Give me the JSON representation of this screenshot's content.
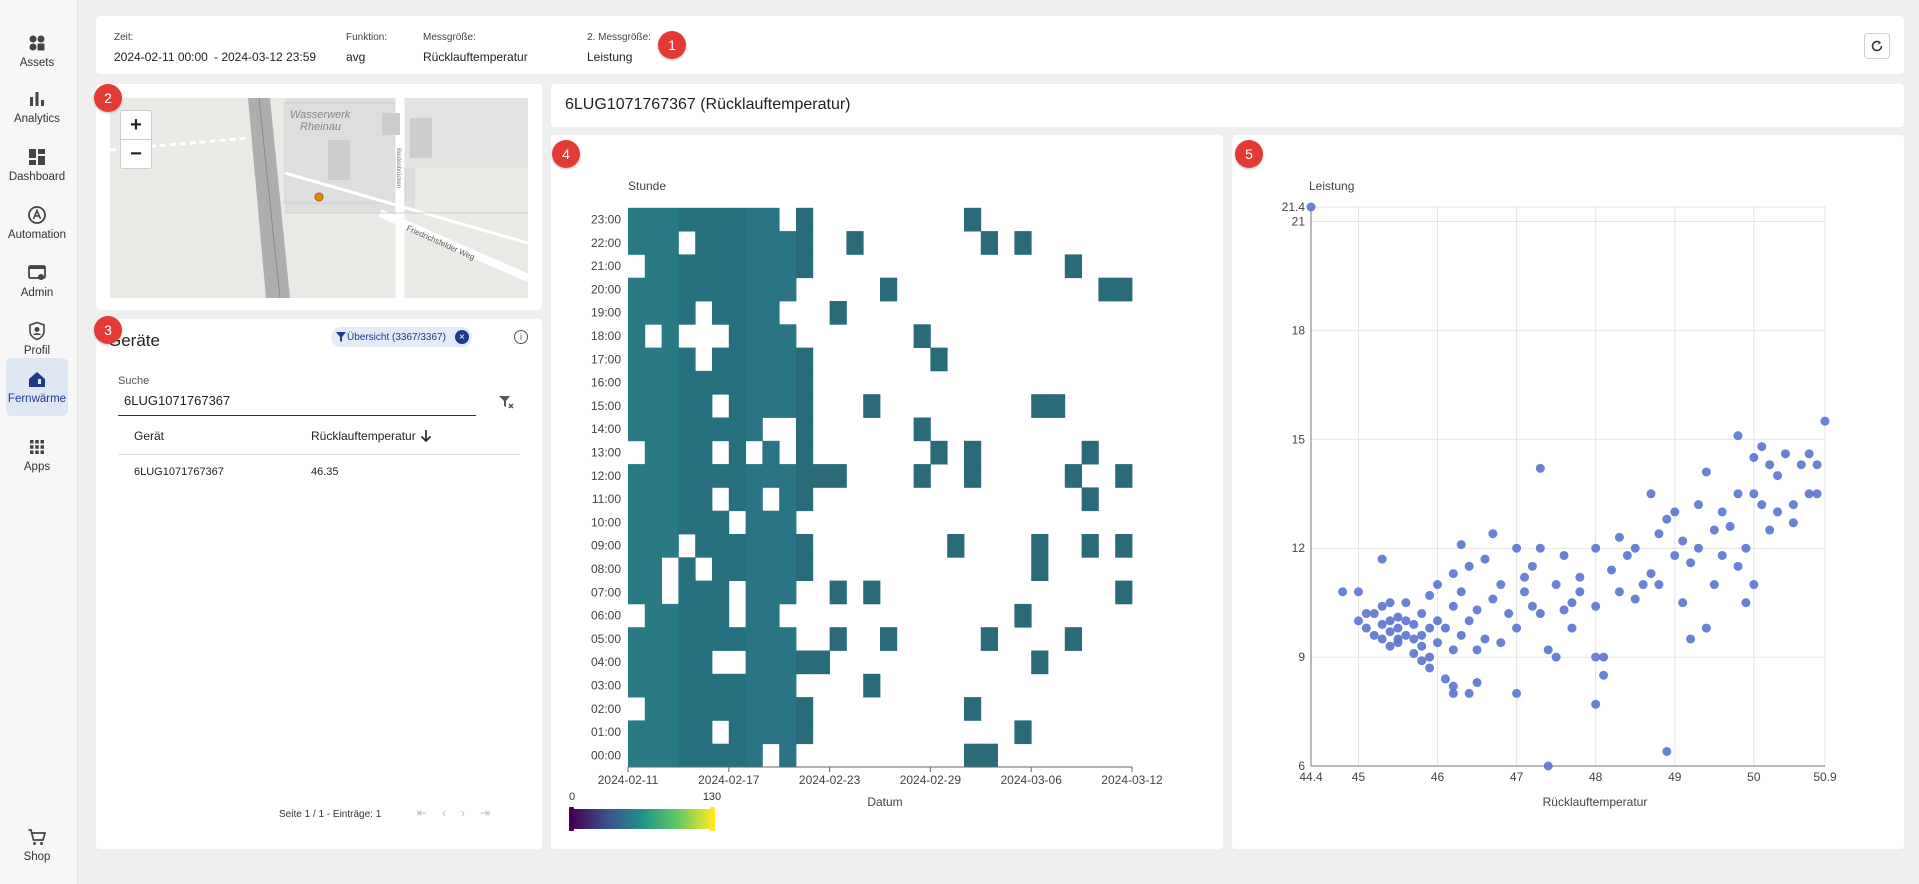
{
  "sidebar": {
    "items": [
      {
        "label": "Assets",
        "icon": "assets-icon"
      },
      {
        "label": "Analytics",
        "icon": "analytics-icon"
      },
      {
        "label": "Dashboard",
        "icon": "dashboard-icon"
      },
      {
        "label": "Automation",
        "icon": "automation-icon"
      },
      {
        "label": "Admin",
        "icon": "admin-icon"
      },
      {
        "label": "Profil",
        "icon": "profile-icon"
      },
      {
        "label": "Fernwärme",
        "icon": "district-heating-icon"
      },
      {
        "label": "Apps",
        "icon": "apps-icon"
      }
    ],
    "shop": {
      "label": "Shop",
      "icon": "cart-icon"
    }
  },
  "filters": {
    "zeit_label": "Zeit:",
    "zeit_from": "2024-02-11 00:00",
    "zeit_to": "- 2024-03-12 23:59",
    "funktion_label": "Funktion:",
    "funktion_value": "avg",
    "messgroesse_label": "Messgröße:",
    "messgroesse_value": "Rücklauftemperatur",
    "messgroesse2_label": "2. Messgröße:",
    "messgroesse2_value": "Leistung"
  },
  "badges": [
    "1",
    "2",
    "3",
    "4",
    "5"
  ],
  "map": {
    "label_1": "Wasserwerk",
    "label_2": "Rheinau",
    "street_1": "Friedrichsfelder Weg",
    "street_2": "Beidenbrücken",
    "zoom_in": "+",
    "zoom_out": "−"
  },
  "devices": {
    "title": "Geräte",
    "chip_label": "Übersicht (3367/3367)",
    "search_label": "Suche",
    "search_value": "6LUG1071767367",
    "columns": [
      "Gerät",
      "Rücklauftemperatur"
    ],
    "rows": [
      {
        "device": "6LUG1071767367",
        "value": "46.35"
      }
    ],
    "pagination": "Seite 1 / 1 - Einträge: 1"
  },
  "chart_title": "6LUG1071767367 (Rücklauftemperatur)",
  "chart_data": [
    {
      "type": "heatmap",
      "title": "",
      "ylabel": "Stunde",
      "xlabel": "Datum",
      "y_ticks": [
        "00:00",
        "01:00",
        "02:00",
        "03:00",
        "04:00",
        "05:00",
        "06:00",
        "07:00",
        "08:00",
        "09:00",
        "10:00",
        "11:00",
        "12:00",
        "13:00",
        "14:00",
        "15:00",
        "16:00",
        "17:00",
        "18:00",
        "19:00",
        "20:00",
        "21:00",
        "22:00",
        "23:00"
      ],
      "x_ticks": [
        "2024-02-11",
        "2024-02-17",
        "2024-02-23",
        "2024-02-29",
        "2024-03-06",
        "2024-03-12"
      ],
      "x_range": [
        "2024-02-11",
        "2024-03-12"
      ],
      "colorscale": {
        "min": 0,
        "max": 130,
        "min_label": "0",
        "max_label": "130"
      },
      "note": "Filled cells ~ values 50-65 (teal); 2024-02-11..02-20 mostly filled; sparse cells afterwards"
    },
    {
      "type": "scatter",
      "xlabel": "Rücklauftemperatur",
      "ylabel": "Leistung",
      "xlim": [
        44.4,
        50.9
      ],
      "ylim": [
        6,
        21.4
      ],
      "x_ticks": [
        "44.4",
        "45",
        "46",
        "47",
        "48",
        "49",
        "50",
        "50.9"
      ],
      "y_ticks": [
        "6",
        "9",
        "12",
        "15",
        "18",
        "21",
        "21.4"
      ],
      "series": [
        {
          "name": "Leistung",
          "color": "#5b73cf",
          "points": [
            [
              44.4,
              21.4
            ],
            [
              44.8,
              10.8
            ],
            [
              45.0,
              10.0
            ],
            [
              45.0,
              10.8
            ],
            [
              45.1,
              10.2
            ],
            [
              45.1,
              9.8
            ],
            [
              45.2,
              9.6
            ],
            [
              45.2,
              10.2
            ],
            [
              45.3,
              9.5
            ],
            [
              45.3,
              9.9
            ],
            [
              45.3,
              10.4
            ],
            [
              45.3,
              11.7
            ],
            [
              45.4,
              9.3
            ],
            [
              45.4,
              9.7
            ],
            [
              45.4,
              10.0
            ],
            [
              45.4,
              10.5
            ],
            [
              45.5,
              9.5
            ],
            [
              45.5,
              9.8
            ],
            [
              45.5,
              10.1
            ],
            [
              45.5,
              9.4
            ],
            [
              45.6,
              9.6
            ],
            [
              45.6,
              10.0
            ],
            [
              45.6,
              10.5
            ],
            [
              45.7,
              9.1
            ],
            [
              45.7,
              9.5
            ],
            [
              45.7,
              9.9
            ],
            [
              45.8,
              8.9
            ],
            [
              45.8,
              9.3
            ],
            [
              45.8,
              9.6
            ],
            [
              45.8,
              10.2
            ],
            [
              45.9,
              10.7
            ],
            [
              45.9,
              9.8
            ],
            [
              45.9,
              9.0
            ],
            [
              45.9,
              8.7
            ],
            [
              46.0,
              9.4
            ],
            [
              46.0,
              10.0
            ],
            [
              46.0,
              11.0
            ],
            [
              46.1,
              8.4
            ],
            [
              46.1,
              9.8
            ],
            [
              46.2,
              8.2
            ],
            [
              46.2,
              8.0
            ],
            [
              46.2,
              9.2
            ],
            [
              46.2,
              10.4
            ],
            [
              46.2,
              11.3
            ],
            [
              46.3,
              12.1
            ],
            [
              46.3,
              10.8
            ],
            [
              46.3,
              9.6
            ],
            [
              46.4,
              8.0
            ],
            [
              46.4,
              11.5
            ],
            [
              46.4,
              10.0
            ],
            [
              46.5,
              8.3
            ],
            [
              46.5,
              9.2
            ],
            [
              46.5,
              10.3
            ],
            [
              46.6,
              9.5
            ],
            [
              46.6,
              11.7
            ],
            [
              46.7,
              10.6
            ],
            [
              46.7,
              12.4
            ],
            [
              46.8,
              9.4
            ],
            [
              46.8,
              11.0
            ],
            [
              46.9,
              10.2
            ],
            [
              47.0,
              8.0
            ],
            [
              47.0,
              12.0
            ],
            [
              47.0,
              9.8
            ],
            [
              47.1,
              11.2
            ],
            [
              47.1,
              10.8
            ],
            [
              47.2,
              10.4
            ],
            [
              47.2,
              11.5
            ],
            [
              47.3,
              12.0
            ],
            [
              47.3,
              10.2
            ],
            [
              47.3,
              14.2
            ],
            [
              47.4,
              6.0
            ],
            [
              47.4,
              9.2
            ],
            [
              47.5,
              11.0
            ],
            [
              47.5,
              9.0
            ],
            [
              47.6,
              10.3
            ],
            [
              47.6,
              11.8
            ],
            [
              47.7,
              9.8
            ],
            [
              47.7,
              10.5
            ],
            [
              47.8,
              11.2
            ],
            [
              47.8,
              10.8
            ],
            [
              48.0,
              7.7
            ],
            [
              48.0,
              9.0
            ],
            [
              48.0,
              10.4
            ],
            [
              48.0,
              12.0
            ],
            [
              48.1,
              9.0
            ],
            [
              48.1,
              8.5
            ],
            [
              48.2,
              11.4
            ],
            [
              48.3,
              12.3
            ],
            [
              48.3,
              10.8
            ],
            [
              48.4,
              11.8
            ],
            [
              48.5,
              10.6
            ],
            [
              48.5,
              12.0
            ],
            [
              48.6,
              11.0
            ],
            [
              48.7,
              13.5
            ],
            [
              48.7,
              11.3
            ],
            [
              48.8,
              12.4
            ],
            [
              48.8,
              11.0
            ],
            [
              48.9,
              6.4
            ],
            [
              48.9,
              12.8
            ],
            [
              49.0,
              11.8
            ],
            [
              49.0,
              13.0
            ],
            [
              49.1,
              10.5
            ],
            [
              49.1,
              12.2
            ],
            [
              49.2,
              9.5
            ],
            [
              49.2,
              11.6
            ],
            [
              49.3,
              13.2
            ],
            [
              49.3,
              12.0
            ],
            [
              49.4,
              14.1
            ],
            [
              49.4,
              9.8
            ],
            [
              49.5,
              11.0
            ],
            [
              49.5,
              12.5
            ],
            [
              49.6,
              13.0
            ],
            [
              49.6,
              11.8
            ],
            [
              49.7,
              12.6
            ],
            [
              49.8,
              15.1
            ],
            [
              49.8,
              13.5
            ],
            [
              49.8,
              11.5
            ],
            [
              49.9,
              12.0
            ],
            [
              49.9,
              10.5
            ],
            [
              50.0,
              13.5
            ],
            [
              50.0,
              14.5
            ],
            [
              50.0,
              11.0
            ],
            [
              50.1,
              14.8
            ],
            [
              50.1,
              13.2
            ],
            [
              50.2,
              14.3
            ],
            [
              50.2,
              12.5
            ],
            [
              50.3,
              13.0
            ],
            [
              50.3,
              14.0
            ],
            [
              50.4,
              14.6
            ],
            [
              50.5,
              13.2
            ],
            [
              50.5,
              12.7
            ],
            [
              50.6,
              14.3
            ],
            [
              50.7,
              13.5
            ],
            [
              50.7,
              14.6
            ],
            [
              50.8,
              14.3
            ],
            [
              50.8,
              13.5
            ],
            [
              50.9,
              15.5
            ]
          ]
        }
      ]
    }
  ]
}
